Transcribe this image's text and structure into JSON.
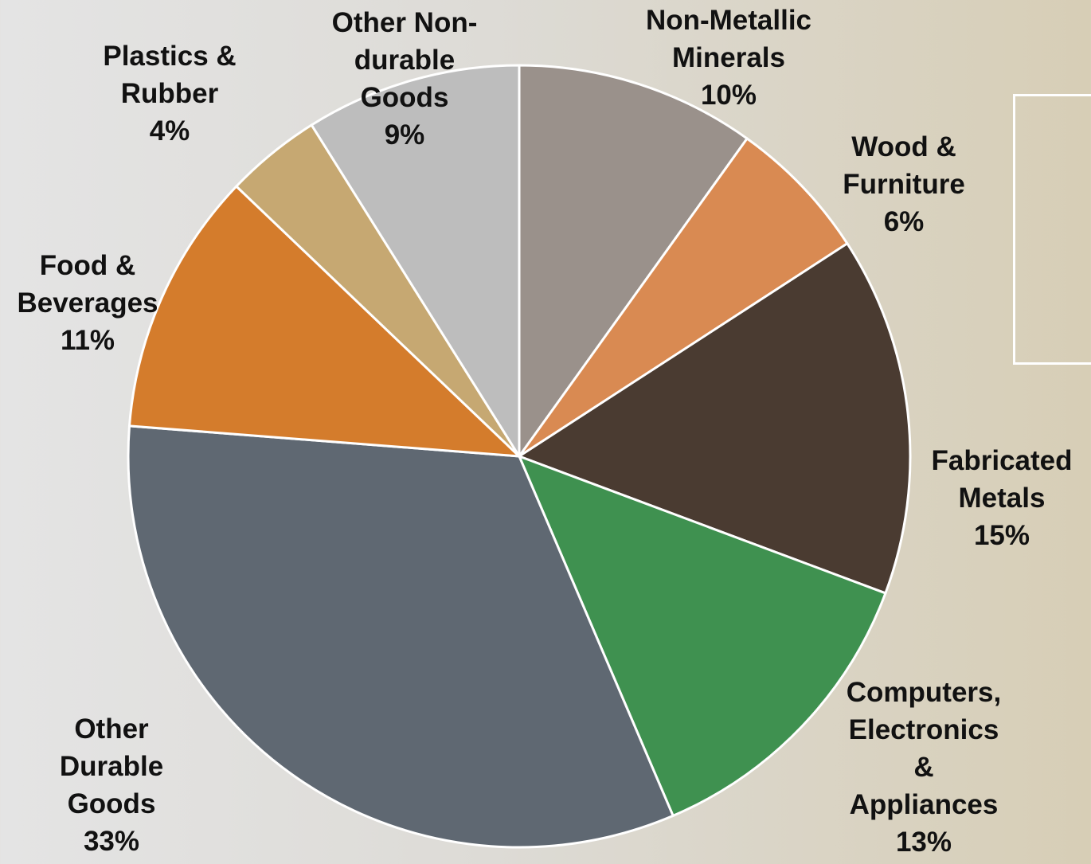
{
  "chart_data": {
    "type": "pie",
    "categories": [
      "Non-Metallic Minerals",
      "Wood & Furniture",
      "Fabricated Metals",
      "Computers, Electronics & Appliances",
      "Other Durable Goods",
      "Food & Beverages",
      "Plastics & Rubber",
      "Other Non-durable Goods"
    ],
    "values": [
      10,
      6,
      15,
      13,
      33,
      11,
      4,
      9
    ],
    "value_labels": [
      "10%",
      "6%",
      "15%",
      "13%",
      "33%",
      "11%",
      "4%",
      "9%"
    ],
    "colors": [
      "#9a918b",
      "#d98a52",
      "#4a3b31",
      "#3f9150",
      "#5f6872",
      "#d47c2c",
      "#c6a872",
      "#bdbdbd"
    ]
  }
}
